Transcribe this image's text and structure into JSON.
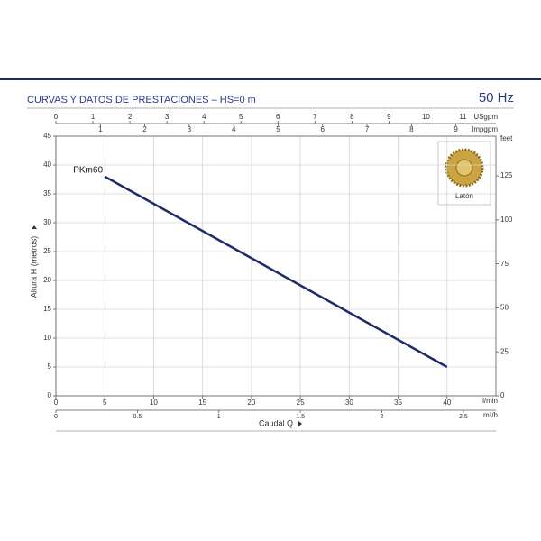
{
  "chart_data": {
    "type": "line",
    "title": "CURVAS Y DATOS DE PRESTACIONES –  HS=0 m",
    "frequency": "50 Hz",
    "x_label": "Caudal Q",
    "y_label": "Altura H (metros)",
    "x_unit": "l/min",
    "inset_label": "Latón",
    "x": [
      5,
      40
    ],
    "series": [
      {
        "name": "PKm60",
        "color": "#1f2a6b",
        "values": [
          38,
          5
        ]
      }
    ],
    "xlim": [
      0,
      45
    ],
    "xticks": [
      0,
      5,
      10,
      15,
      20,
      25,
      30,
      35,
      40
    ],
    "ylim": [
      0,
      45
    ],
    "yticks": [
      0,
      5,
      10,
      15,
      20,
      25,
      30,
      35,
      40,
      45
    ],
    "grid": true,
    "y2_unit": "feet",
    "y2lim": [
      0,
      147.6
    ],
    "y2ticks": [
      0,
      25,
      50,
      75,
      100,
      125
    ],
    "top_axes": [
      {
        "unit": "USgpm",
        "lim": [
          0,
          11.89
        ],
        "ticks": [
          0,
          1,
          2,
          3,
          4,
          5,
          6,
          7,
          8,
          9,
          10,
          11
        ]
      },
      {
        "unit": "Impgpm",
        "lim": [
          0,
          9.9
        ],
        "ticks": [
          1,
          2,
          3,
          4,
          5,
          6,
          7,
          8,
          9
        ]
      }
    ],
    "bottom_axis2": {
      "unit": "m³/h",
      "lim": [
        0,
        2.7
      ],
      "ticks": [
        0,
        0.5,
        1,
        1.5,
        2,
        2.5
      ]
    }
  }
}
